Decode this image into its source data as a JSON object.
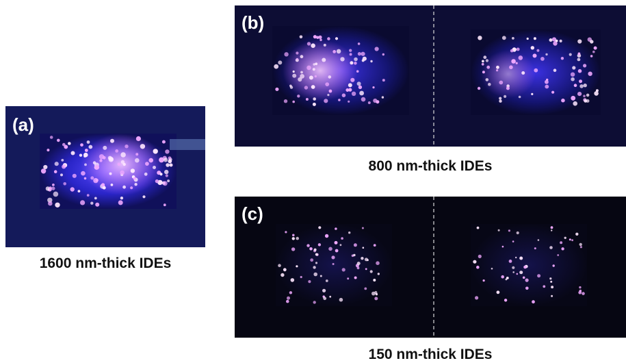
{
  "panels": [
    {
      "label": "(a)",
      "caption": "1600 nm-thick IDEs"
    },
    {
      "label": "(b)",
      "caption": "800 nm-thick IDEs"
    },
    {
      "label": "(c)",
      "caption": "150 nm-thick IDEs"
    }
  ]
}
